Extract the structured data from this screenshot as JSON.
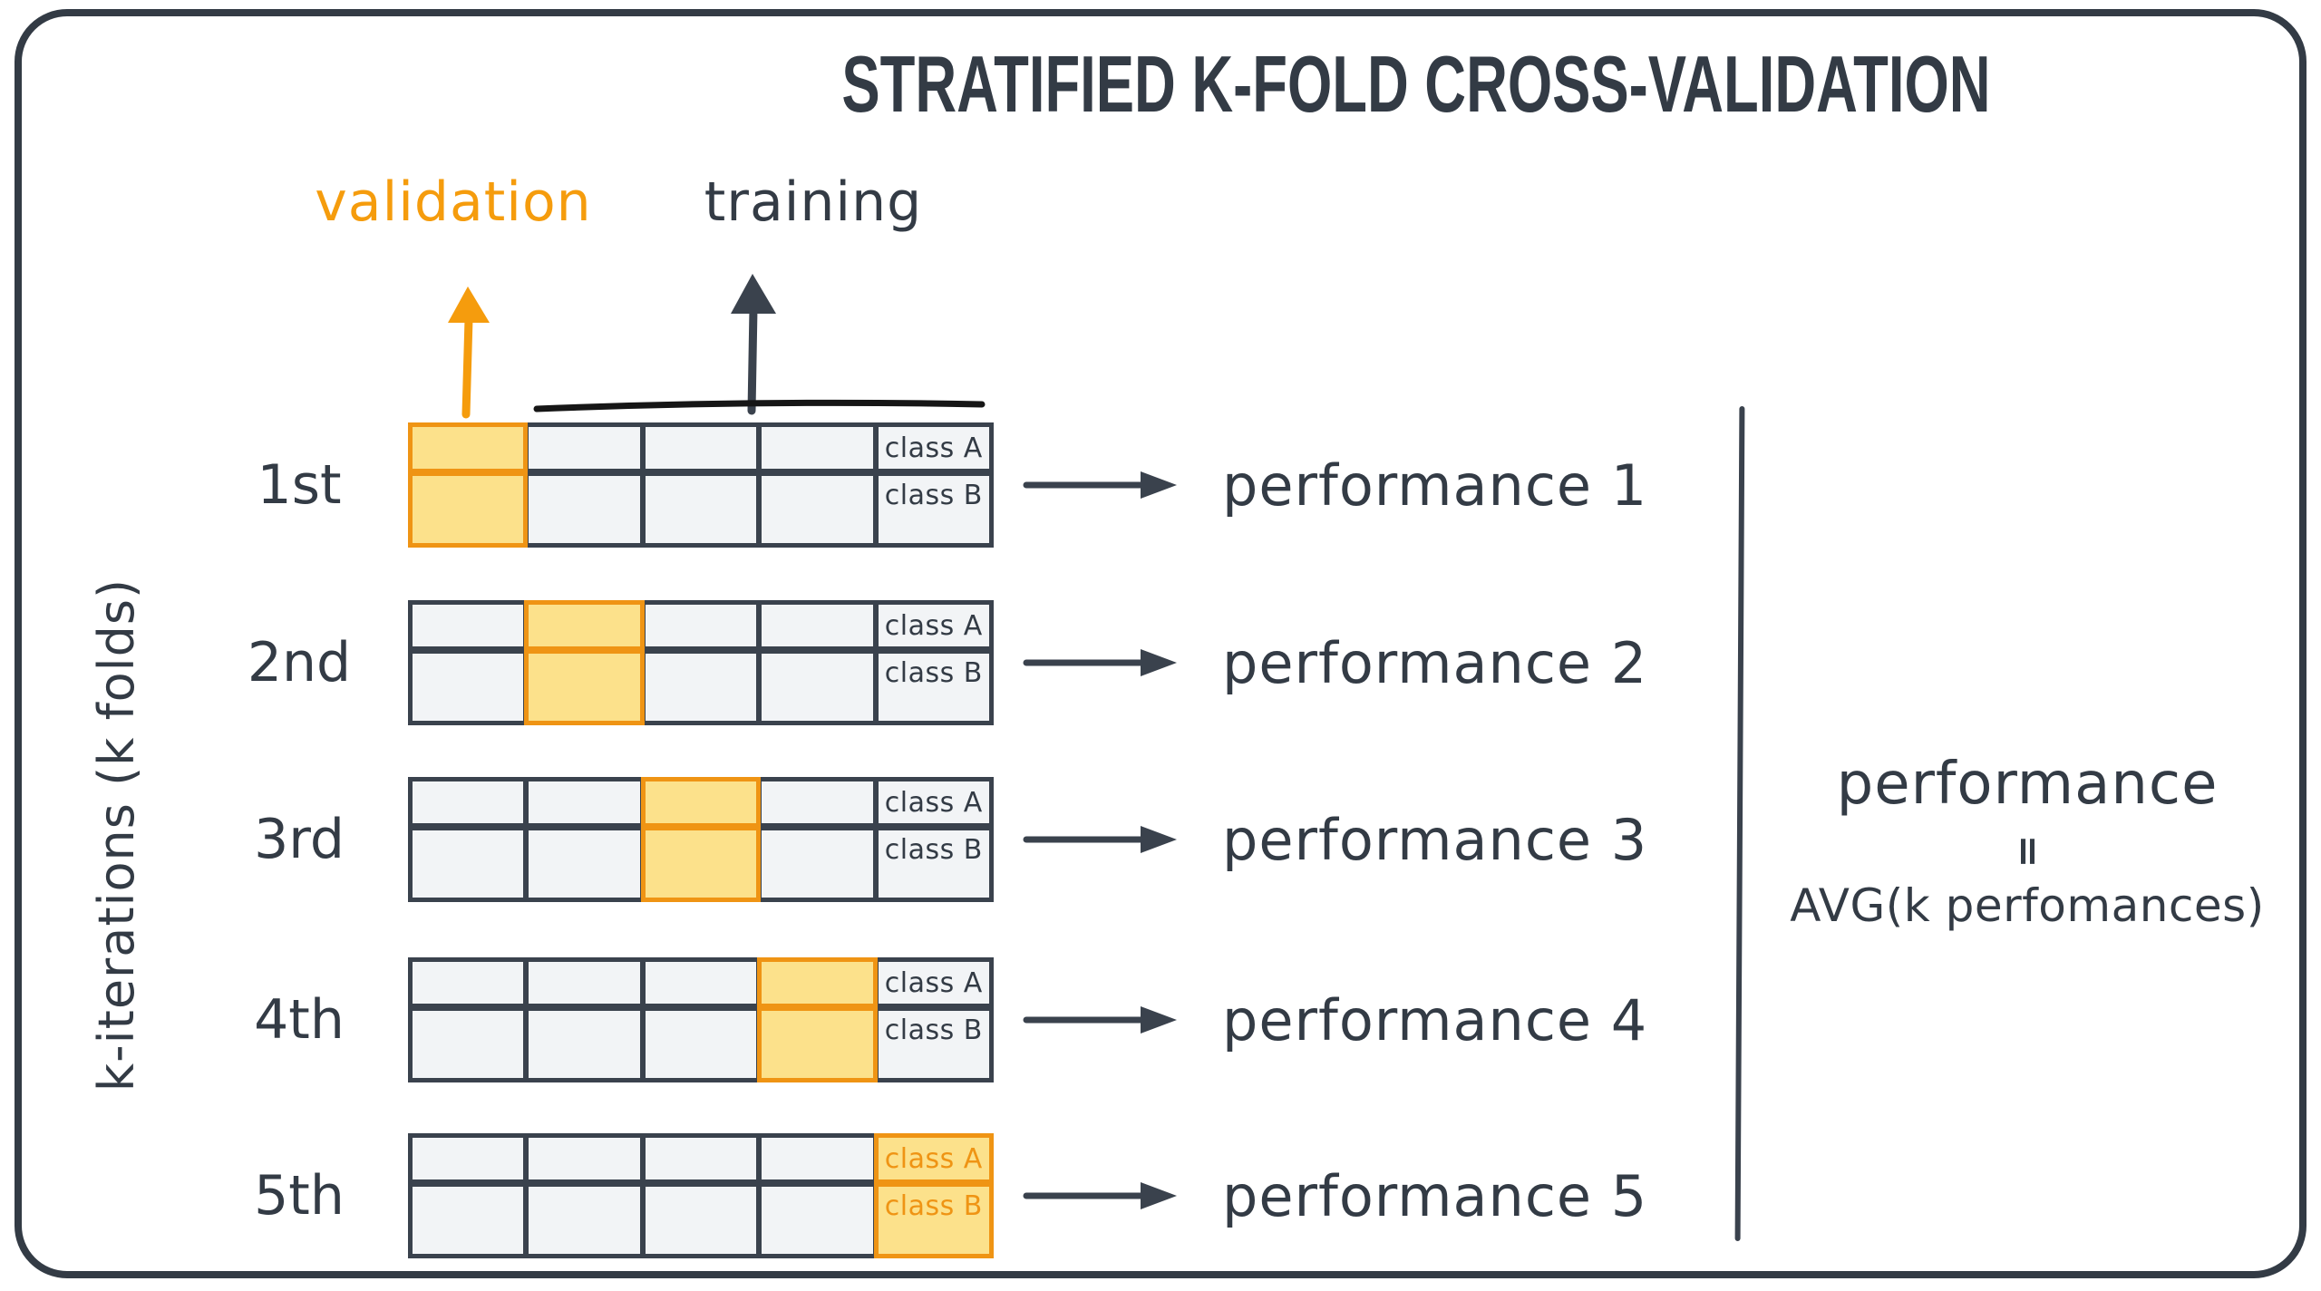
{
  "title": "STRATIFIED K-FOLD CROSS-VALIDATION",
  "legend": {
    "validation_label": "validation",
    "training_label": "training"
  },
  "axis_label": "k-iterations (k folds)",
  "class_labels": [
    "class A",
    "class B"
  ],
  "folds_per_iteration": 5,
  "iterations": [
    {
      "label": "1st",
      "validation_fold": 1,
      "performance": "performance 1"
    },
    {
      "label": "2nd",
      "validation_fold": 2,
      "performance": "performance 2"
    },
    {
      "label": "3rd",
      "validation_fold": 3,
      "performance": "performance 3"
    },
    {
      "label": "4th",
      "validation_fold": 4,
      "performance": "performance 4"
    },
    {
      "label": "5th",
      "validation_fold": 5,
      "performance": "performance 5"
    }
  ],
  "summary": {
    "line1": "performance",
    "equals": "=",
    "line2": "AVG(k perfomances)"
  },
  "colors": {
    "dark": "#333b45",
    "grid_border": "#3a424d",
    "cell_fill": "#f2f4f6",
    "highlight_fill": "#fce18b",
    "highlight_border": "#ef9414",
    "validation_text": "#f59c0d",
    "overline_black": "#161616",
    "background": "#ffffff"
  }
}
